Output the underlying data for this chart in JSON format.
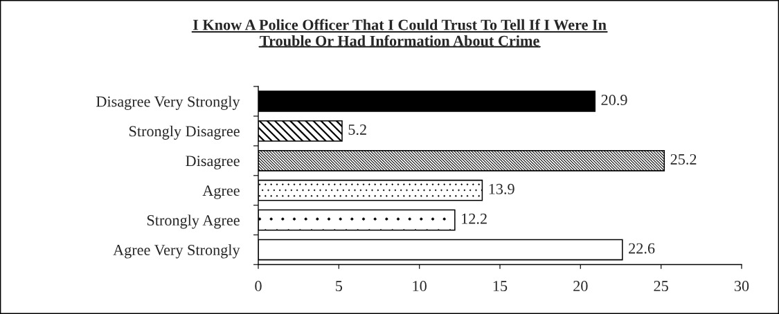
{
  "chart_data": {
    "type": "bar",
    "orientation": "horizontal",
    "title": "I Know A Police Officer That I Could Trust To Tell If I Were In\nTrouble Or Had Information About Crime",
    "categories": [
      "Disagree Very Strongly",
      "Strongly Disagree",
      "Disagree",
      "Agree",
      "Strongly Agree",
      "Agree Very Strongly"
    ],
    "values": [
      20.9,
      5.2,
      25.2,
      13.9,
      12.2,
      22.6
    ],
    "colors": [
      "#000000",
      "#000000",
      "#000000",
      "#000000",
      "#000000",
      "#ffffff"
    ],
    "xlim": [
      0,
      30
    ],
    "xticks": [
      0,
      5,
      10,
      15,
      20,
      25,
      30
    ],
    "data_labels": true
  }
}
